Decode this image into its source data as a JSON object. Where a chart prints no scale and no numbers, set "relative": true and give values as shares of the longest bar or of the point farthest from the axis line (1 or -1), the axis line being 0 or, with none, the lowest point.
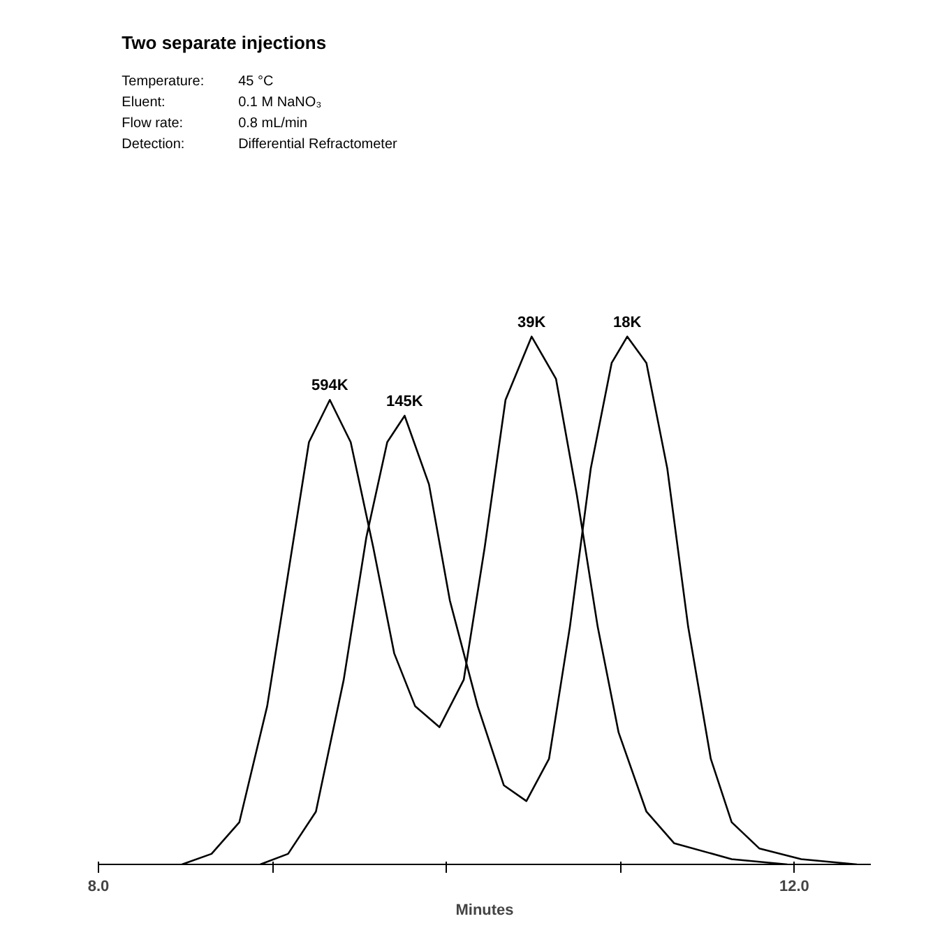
{
  "chart_data": {
    "type": "line",
    "title": "Two separate injections",
    "xlabel": "Minutes",
    "relative": true,
    "annotations": [
      "Temperature: 45 °C",
      "Eluent: 0.1 M NaNO₃",
      "Flow rate: 0.8 mL/min",
      "Detection: Differential Refractometer",
      {
        "text": "594K",
        "x": 9.33,
        "y": 0.88
      },
      {
        "text": "145K",
        "x": 9.76,
        "y": 0.85
      },
      {
        "text": "39K",
        "x": 10.49,
        "y": 1.0
      },
      {
        "text": "18K",
        "x": 11.04,
        "y": 1.0
      }
    ],
    "xlim": [
      8.0,
      12.44
    ],
    "xticks": [
      {
        "value": 8.0,
        "label": "8.0"
      },
      {
        "value": 9.0,
        "label": null
      },
      {
        "value": 10.0,
        "label": null
      },
      {
        "value": 11.0,
        "label": null
      },
      {
        "value": 12.0,
        "label": "12.0"
      }
    ],
    "tick_labels": "x",
    "grid": false,
    "marker": "none",
    "line_style": "solid",
    "series": [
      {
        "color": "#000000",
        "x": [
          8.48,
          8.65,
          8.81,
          8.97,
          9.09,
          9.21,
          9.33,
          9.45,
          9.58,
          9.7,
          9.82,
          9.96,
          10.1,
          10.22,
          10.34,
          10.49,
          10.63,
          10.75,
          10.87,
          10.99,
          11.15,
          11.31,
          11.64,
          11.96
        ],
        "values": [
          0,
          0.02,
          0.08,
          0.3,
          0.55,
          0.8,
          0.88,
          0.8,
          0.6,
          0.4,
          0.3,
          0.26,
          0.35,
          0.6,
          0.88,
          1.0,
          0.92,
          0.7,
          0.45,
          0.25,
          0.1,
          0.04,
          0.01,
          0
        ]
      },
      {
        "color": "#000000",
        "x": [
          8.93,
          9.09,
          9.25,
          9.41,
          9.54,
          9.66,
          9.76,
          9.9,
          10.02,
          10.18,
          10.33,
          10.46,
          10.59,
          10.71,
          10.83,
          10.95,
          11.04,
          11.15,
          11.27,
          11.39,
          11.52,
          11.64,
          11.8,
          12.04,
          12.36
        ],
        "values": [
          0,
          0.02,
          0.1,
          0.35,
          0.62,
          0.8,
          0.85,
          0.72,
          0.5,
          0.3,
          0.15,
          0.12,
          0.2,
          0.45,
          0.75,
          0.95,
          1.0,
          0.95,
          0.75,
          0.45,
          0.2,
          0.08,
          0.03,
          0.01,
          0
        ]
      }
    ]
  }
}
